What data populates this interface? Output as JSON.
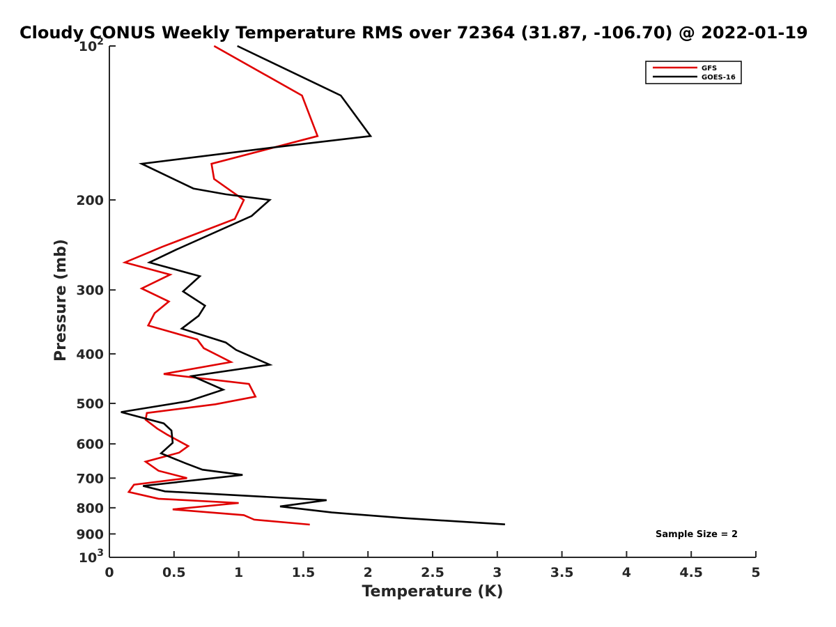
{
  "chart_data": {
    "type": "line",
    "title": "Cloudy CONUS Weekly Temperature RMS over 72364 (31.87, -106.70) @ 2022-01-19",
    "xlabel": "Temperature (K)",
    "ylabel": "Pressure (mb)",
    "xlim": [
      0,
      5
    ],
    "ylim": [
      100,
      1000
    ],
    "yscale": "log",
    "y_reversed": true,
    "x_ticks": [
      "0",
      "0.5",
      "1",
      "1.5",
      "2",
      "2.5",
      "3",
      "3.5",
      "4",
      "4.5",
      "5"
    ],
    "y_ticks": [
      {
        "value": 100,
        "base": "10",
        "exp": "2"
      },
      {
        "value": 200,
        "label": "200"
      },
      {
        "value": 300,
        "label": "300"
      },
      {
        "value": 400,
        "label": "400"
      },
      {
        "value": 500,
        "label": "500"
      },
      {
        "value": 600,
        "label": "600"
      },
      {
        "value": 700,
        "label": "700"
      },
      {
        "value": 800,
        "label": "800"
      },
      {
        "value": 900,
        "label": "900"
      },
      {
        "value": 1000,
        "base": "10",
        "exp": "3"
      }
    ],
    "grid": false,
    "legend_position": "top-right",
    "annotation": "Sample Size = 2",
    "series": [
      {
        "name": "GFS",
        "color": "#e00000",
        "points": [
          [
            0.81,
            100
          ],
          [
            1.49,
            125
          ],
          [
            1.61,
            150
          ],
          [
            0.79,
            170
          ],
          [
            0.81,
            182
          ],
          [
            1.04,
            200
          ],
          [
            0.97,
            218
          ],
          [
            0.41,
            247
          ],
          [
            0.12,
            265
          ],
          [
            0.47,
            280
          ],
          [
            0.25,
            298
          ],
          [
            0.46,
            316
          ],
          [
            0.35,
            333
          ],
          [
            0.3,
            352
          ],
          [
            0.68,
            375
          ],
          [
            0.73,
            390
          ],
          [
            0.94,
            415
          ],
          [
            0.42,
            438
          ],
          [
            1.08,
            458
          ],
          [
            1.13,
            485
          ],
          [
            0.82,
            502
          ],
          [
            0.29,
            522
          ],
          [
            0.28,
            538
          ],
          [
            0.37,
            560
          ],
          [
            0.45,
            576
          ],
          [
            0.61,
            606
          ],
          [
            0.54,
            624
          ],
          [
            0.28,
            650
          ],
          [
            0.38,
            677
          ],
          [
            0.6,
            700
          ],
          [
            0.19,
            721
          ],
          [
            0.15,
            745
          ],
          [
            0.38,
            768
          ],
          [
            1.0,
            783
          ],
          [
            0.49,
            806
          ],
          [
            1.04,
            827
          ],
          [
            1.12,
            844
          ],
          [
            1.55,
            863
          ]
        ]
      },
      {
        "name": "GOES-16",
        "color": "#000000",
        "points": [
          [
            0.99,
            100
          ],
          [
            1.79,
            125
          ],
          [
            2.02,
            150
          ],
          [
            1.26,
            158
          ],
          [
            0.25,
            170
          ],
          [
            0.65,
            190
          ],
          [
            0.9,
            195
          ],
          [
            1.24,
            200
          ],
          [
            1.1,
            215
          ],
          [
            0.52,
            250
          ],
          [
            0.31,
            265
          ],
          [
            0.7,
            282
          ],
          [
            0.57,
            302
          ],
          [
            0.74,
            322
          ],
          [
            0.69,
            337
          ],
          [
            0.56,
            357
          ],
          [
            0.9,
            380
          ],
          [
            0.98,
            393
          ],
          [
            1.24,
            420
          ],
          [
            0.64,
            442
          ],
          [
            0.88,
            470
          ],
          [
            0.61,
            495
          ],
          [
            0.09,
            520
          ],
          [
            0.42,
            547
          ],
          [
            0.48,
            565
          ],
          [
            0.49,
            597
          ],
          [
            0.4,
            626
          ],
          [
            0.59,
            655
          ],
          [
            0.72,
            674
          ],
          [
            1.03,
            690
          ],
          [
            0.26,
            725
          ],
          [
            0.43,
            743
          ],
          [
            1.68,
            773
          ],
          [
            1.32,
            795
          ],
          [
            1.72,
            817
          ],
          [
            2.28,
            838
          ],
          [
            3.06,
            862
          ]
        ]
      }
    ]
  }
}
